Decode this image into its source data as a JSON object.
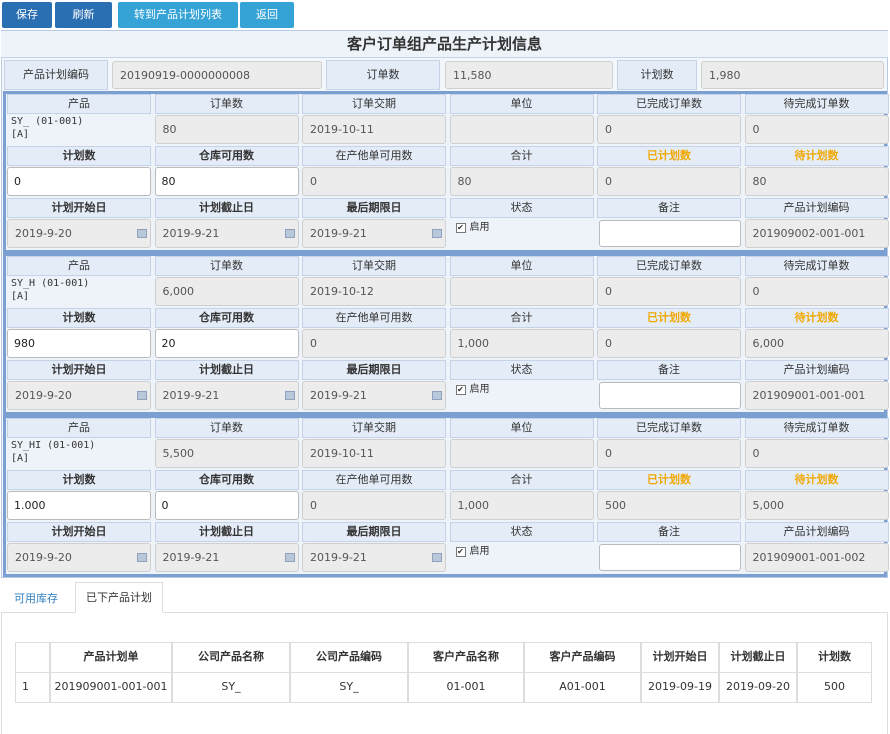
{
  "toolbar": {
    "save": "保存",
    "refresh": "刷新",
    "goto_list": "转到产品计划列表",
    "back": "返回"
  },
  "title": "客户订单组产品生产计划信息",
  "summary": {
    "plan_code_label": "产品计划编码",
    "plan_code": "20190919-0000000008",
    "order_qty_label": "订单数",
    "order_qty": "11,580",
    "plan_qty_label": "计划数",
    "plan_qty": "1,980"
  },
  "labels": {
    "product": "产品",
    "order_qty": "订单数",
    "order_date": "订单交期",
    "unit": "单位",
    "completed": "已完成订单数",
    "pending": "待完成订单数",
    "plan_qty": "计划数",
    "warehouse_available": "仓库可用数",
    "in_production_available": "在产他单可用数",
    "total": "合计",
    "planned": "已计划数",
    "to_plan": "待计划数",
    "start_date": "计划开始日",
    "end_date": "计划截止日",
    "deadline": "最后期限日",
    "status": "状态",
    "remark": "备注",
    "plan_code": "产品计划编码"
  },
  "blocks": [
    {
      "product": "SY_ (01-001)\n[A]",
      "order_qty": "80",
      "order_date": "2019-10-11",
      "completed": "0",
      "pending": "0",
      "plan_qty": "0",
      "warehouse_available": "80",
      "in_production_available": "0",
      "total": "80",
      "planned": "0",
      "to_plan": "80",
      "start_date": "2019-9-20",
      "end_date": "2019-9-21",
      "deadline": "2019-9-21",
      "status": "启用",
      "plan_code": "201909002-001-001"
    },
    {
      "product": "SY_H (01-001)\n[A]",
      "order_qty": "6,000",
      "order_date": "2019-10-12",
      "completed": "0",
      "pending": "0",
      "plan_qty": "980",
      "warehouse_available": "20",
      "in_production_available": "0",
      "total": "1,000",
      "planned": "0",
      "to_plan": "6,000",
      "start_date": "2019-9-20",
      "end_date": "2019-9-21",
      "deadline": "2019-9-21",
      "status": "启用",
      "plan_code": "201909001-001-001"
    },
    {
      "product": "SY_HI (01-001)\n[A]",
      "order_qty": "5,500",
      "order_date": "2019-10-11",
      "completed": "0",
      "pending": "0",
      "plan_qty": "1.000",
      "warehouse_available": "0",
      "in_production_available": "0",
      "total": "1,000",
      "planned": "500",
      "to_plan": "5,000",
      "start_date": "2019-9-20",
      "end_date": "2019-9-21",
      "deadline": "2019-9-21",
      "status": "启用",
      "plan_code": "201909001-001-002"
    }
  ],
  "tabs": [
    "可用库存",
    "已下产品计划"
  ],
  "table": {
    "headers": [
      "产品计划单",
      "公司产品名称",
      "公司产品编码",
      "客户产品名称",
      "客户产品编码",
      "计划开始日",
      "计划截止日",
      "计划数"
    ],
    "rows": [
      [
        "1",
        "201909001-001-001",
        "SY_",
        "SY_",
        "01-001",
        "A01-001",
        "2019-09-19",
        "2019-09-20",
        "500"
      ]
    ]
  }
}
